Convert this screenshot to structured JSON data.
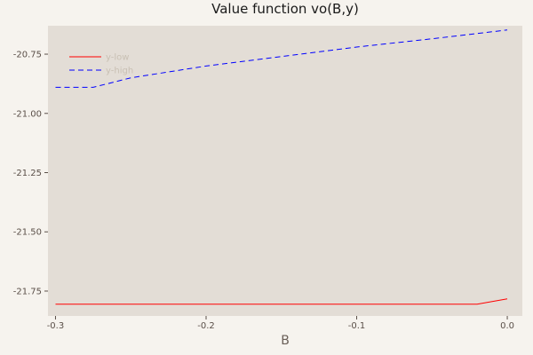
{
  "chart_data": {
    "type": "line",
    "title": "Value function vo(B,y)",
    "xlabel": "B",
    "ylabel": "",
    "xlim": [
      -0.305,
      0.01
    ],
    "ylim": [
      -21.855,
      -20.63
    ],
    "xticks": [
      -0.3,
      -0.2,
      -0.1,
      0.0
    ],
    "xtick_labels": [
      "-0.3",
      "-0.2",
      "-0.1",
      "0.0"
    ],
    "yticks": [
      -20.75,
      -21.0,
      -21.25,
      -21.5,
      -21.75
    ],
    "ytick_labels": [
      "-20.75",
      "-21.00",
      "-21.25",
      "-21.50",
      "-21.75"
    ],
    "grid": false,
    "legend_position": "top-left",
    "colors": {
      "background": "#f6f3ee",
      "plot_background": "#e3ddd6"
    },
    "series": [
      {
        "name": "y-low",
        "color": "#ff0000",
        "style": "solid",
        "x": [
          -0.3,
          -0.28,
          -0.25,
          -0.2,
          -0.15,
          -0.1,
          -0.05,
          -0.02,
          0.0
        ],
        "y": [
          -21.805,
          -21.805,
          -21.805,
          -21.805,
          -21.805,
          -21.805,
          -21.805,
          -21.805,
          -21.783
        ]
      },
      {
        "name": "y-high",
        "color": "#0000ff",
        "style": "dashed",
        "x": [
          -0.3,
          -0.275,
          -0.25,
          -0.2,
          -0.15,
          -0.1,
          -0.05,
          0.0
        ],
        "y": [
          -20.89,
          -20.89,
          -20.85,
          -20.8,
          -20.76,
          -20.72,
          -20.685,
          -20.648
        ]
      }
    ]
  }
}
